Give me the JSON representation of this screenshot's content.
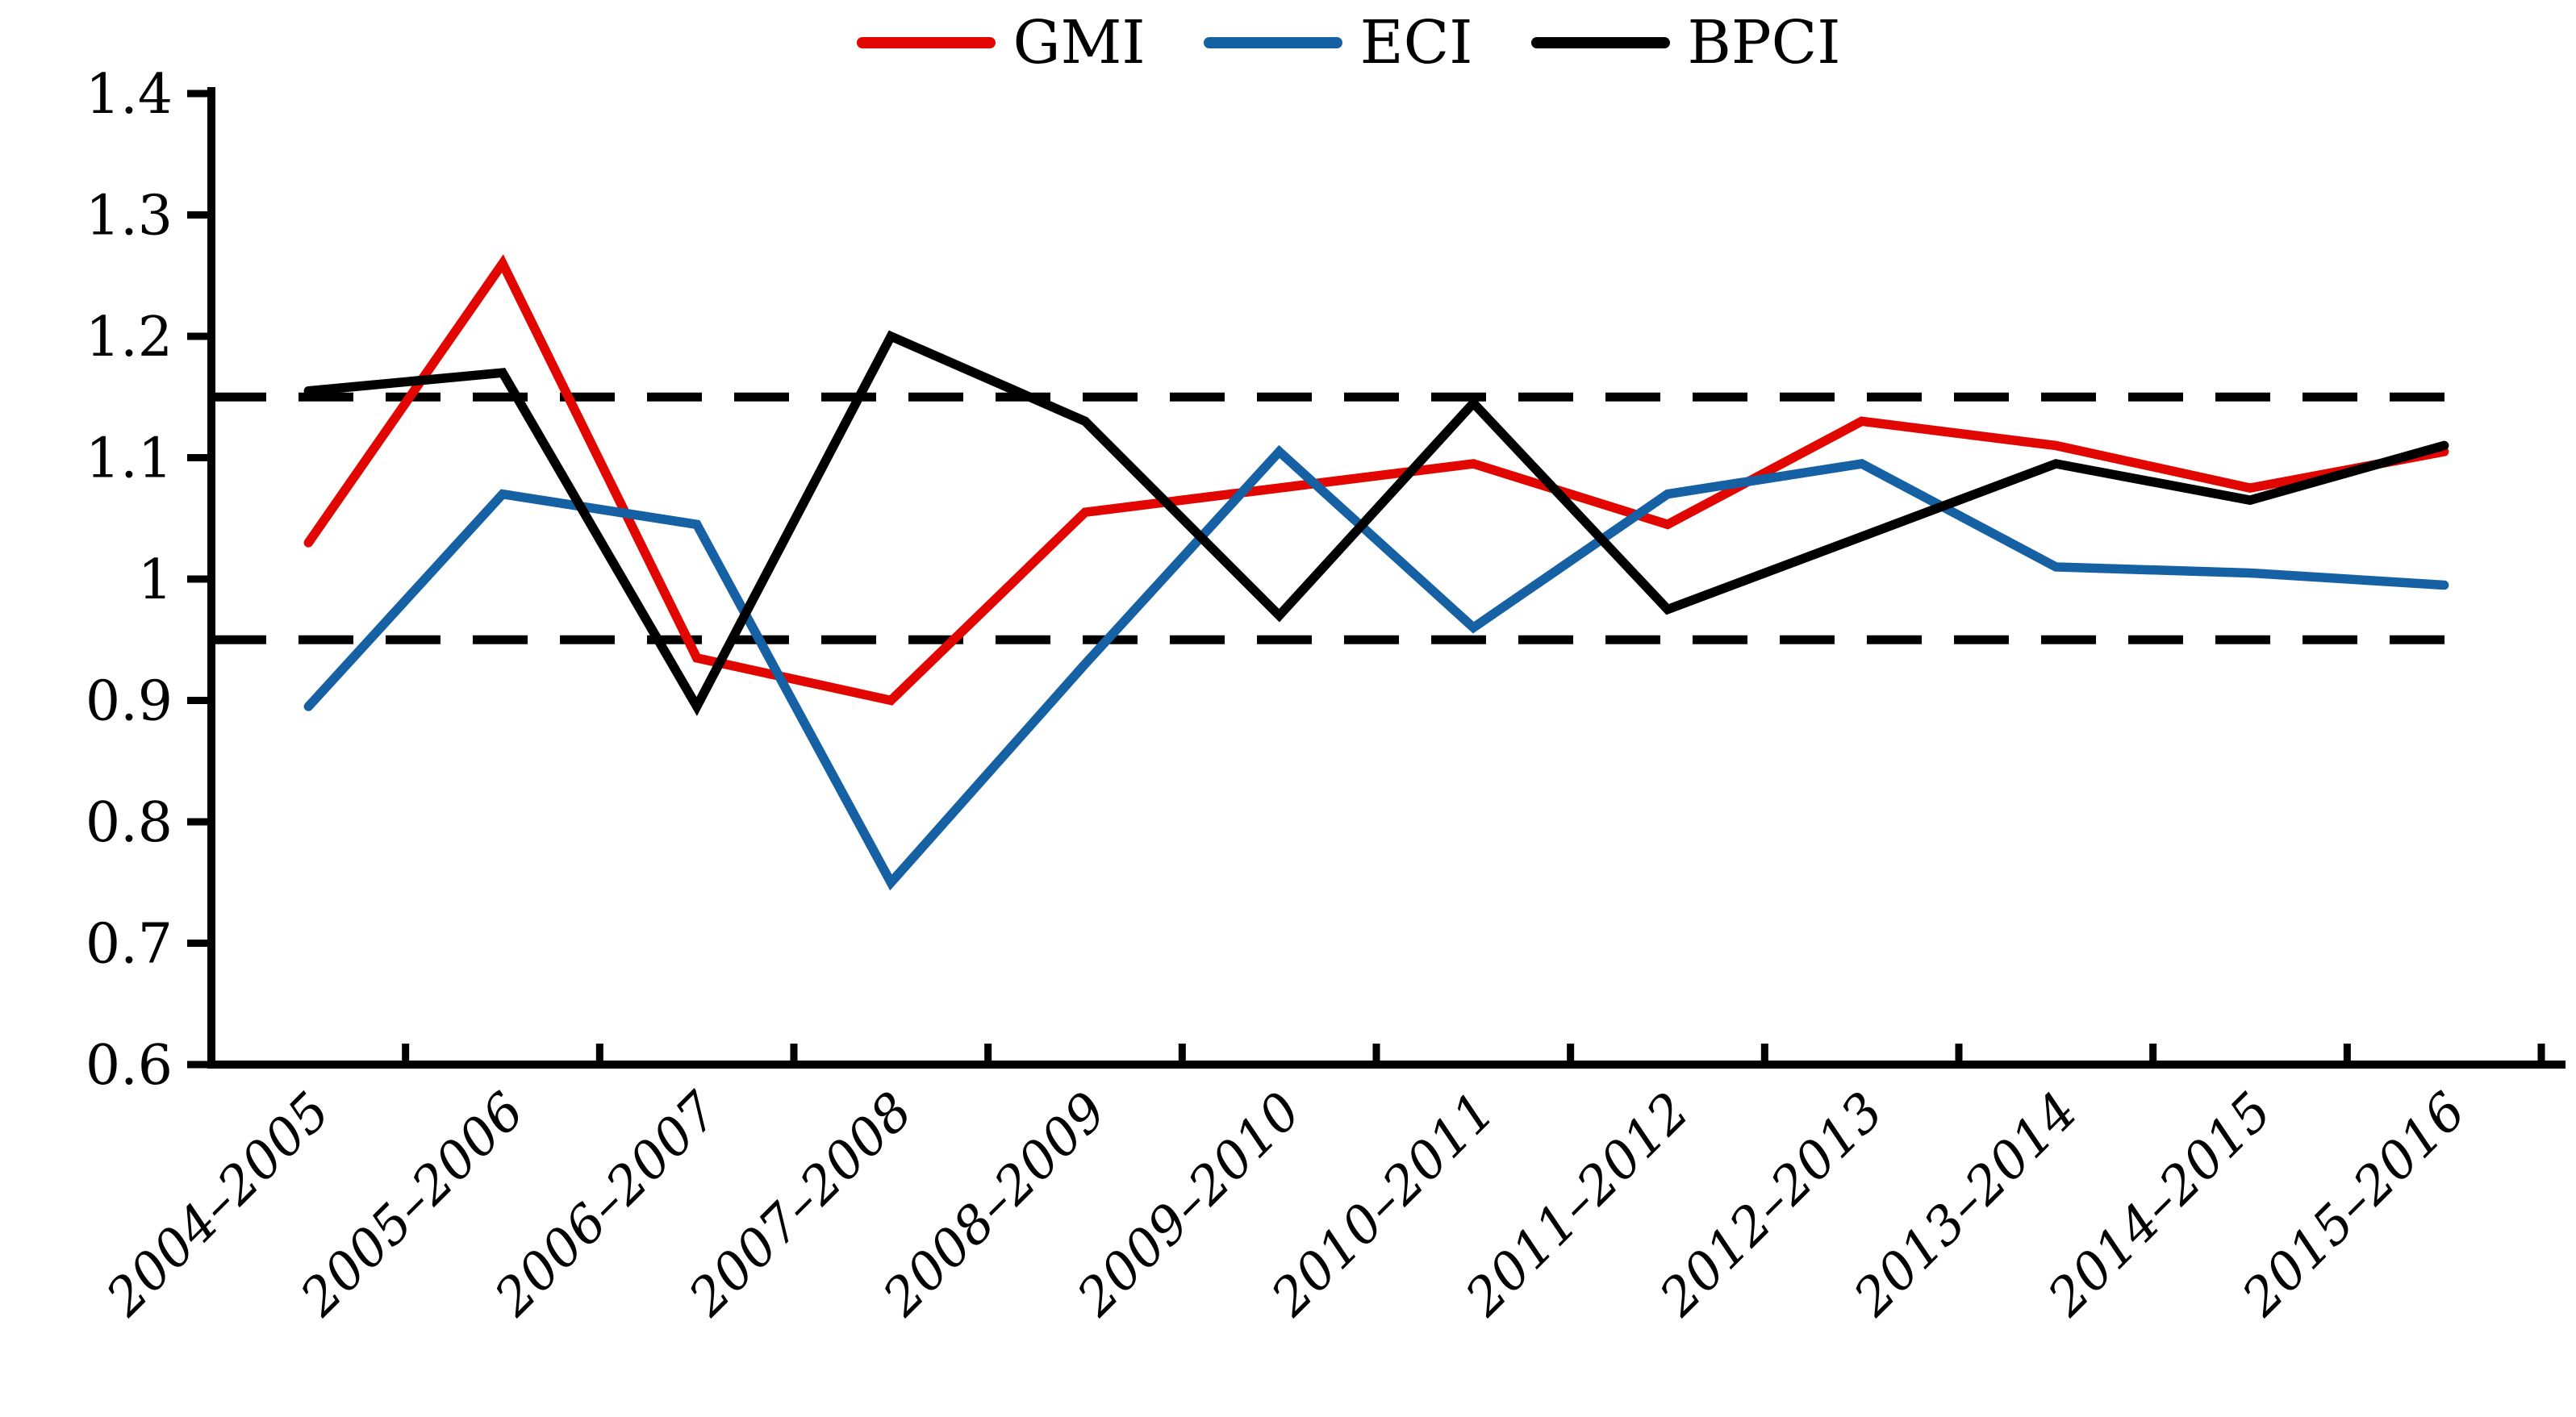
{
  "chart_data": {
    "type": "line",
    "title": "",
    "xlabel": "",
    "ylabel": "",
    "categories": [
      "2004–2005",
      "2005–2006",
      "2006–2007",
      "2007–2008",
      "2008–2009",
      "2009–2010",
      "2010–2011",
      "2011–2012",
      "2012–2013",
      "2013–2014",
      "2014–2015",
      "2015–2016"
    ],
    "series": [
      {
        "name": "GMI",
        "color": "#E10600",
        "values": [
          1.03,
          1.26,
          0.935,
          0.9,
          1.055,
          1.075,
          1.095,
          1.045,
          1.13,
          1.11,
          1.075,
          1.105
        ]
      },
      {
        "name": "ECI",
        "color": "#1660A4",
        "values": [
          0.895,
          1.07,
          1.045,
          0.75,
          0.93,
          1.105,
          0.96,
          1.07,
          1.095,
          1.01,
          1.005,
          0.995
        ]
      },
      {
        "name": "BPCI",
        "color": "#000000",
        "values": [
          1.155,
          1.17,
          0.895,
          1.2,
          1.13,
          0.97,
          1.145,
          0.975,
          1.035,
          1.095,
          1.065,
          1.11
        ]
      }
    ],
    "reference_lines": [
      {
        "value": 1.15,
        "style": "dashed",
        "color": "#000000"
      },
      {
        "value": 0.95,
        "style": "dashed",
        "color": "#000000"
      }
    ],
    "ylim": [
      0.6,
      1.4
    ],
    "ytick_step": 0.1,
    "ytick_labels": [
      "0.6",
      "0.7",
      "0.8",
      "0.9",
      "1",
      "1.1",
      "1.2",
      "1.3",
      "1.4"
    ],
    "legend_position": "top-center",
    "grid": false,
    "x_label_rotation": -45
  }
}
